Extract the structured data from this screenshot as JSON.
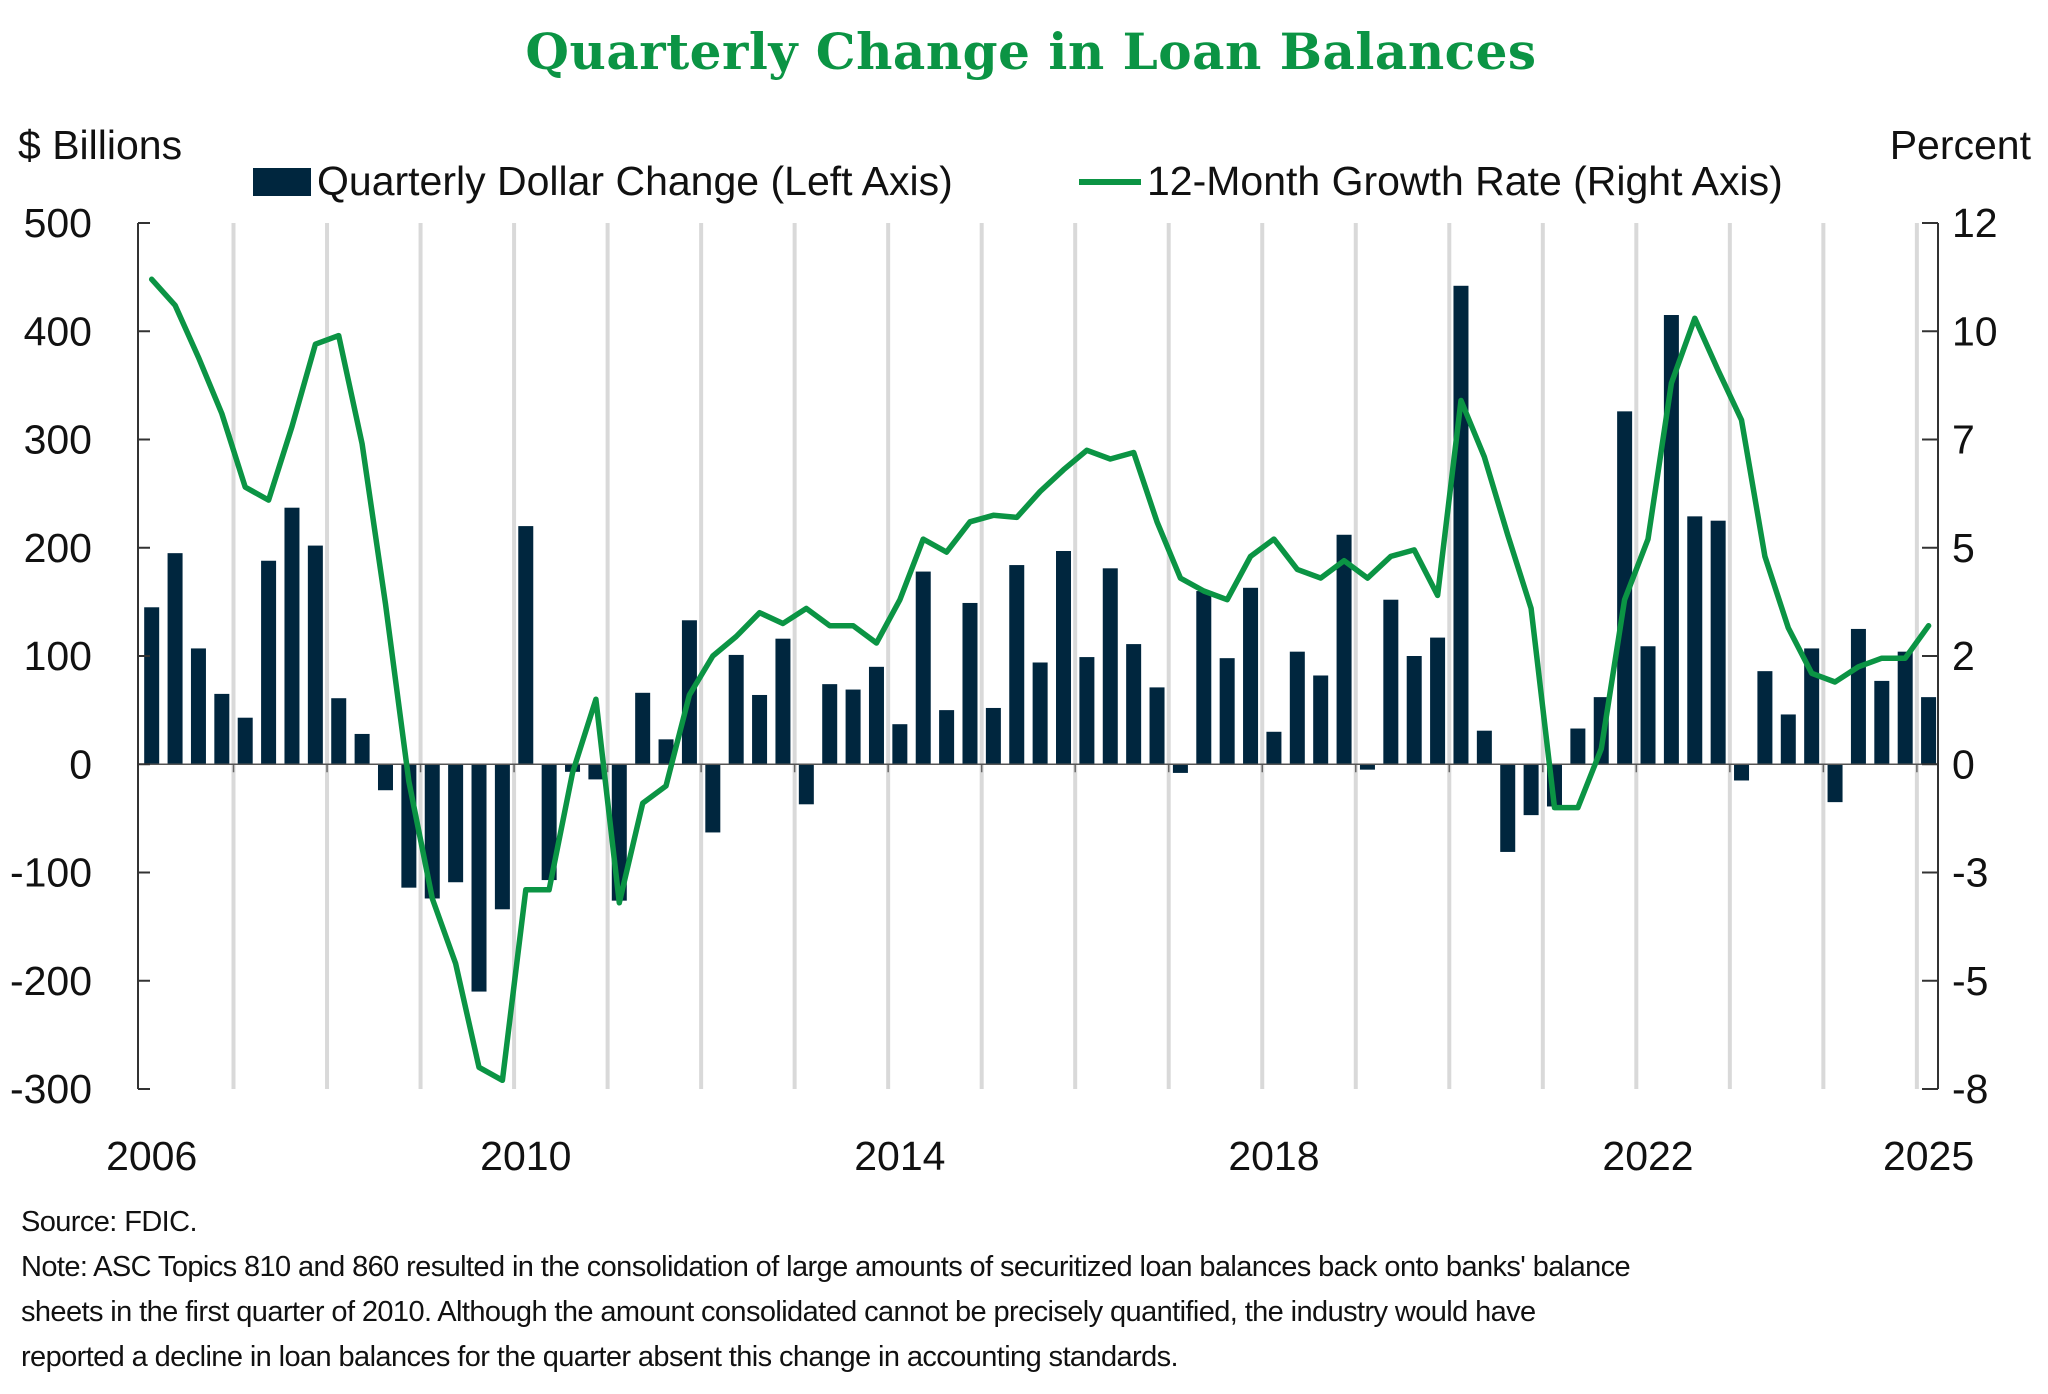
{
  "chart_data": {
    "type": "bar+line",
    "title": "Quarterly Change in Loan Balances",
    "left_axis_label": "$ Billions",
    "right_axis_label": "Percent",
    "left_ylim": [
      -300,
      500
    ],
    "right_ylim": [
      -7.5,
      12.5
    ],
    "left_ticks": [
      "500",
      "400",
      "300",
      "200",
      "100",
      "0",
      "-100",
      "-200",
      "-300"
    ],
    "right_ticks": [
      "12",
      "10",
      "7",
      "5",
      "2",
      "0",
      "-3",
      "-5",
      "-8"
    ],
    "x_ticks": [
      "2006",
      "2010",
      "2014",
      "2018",
      "2022",
      "2025"
    ],
    "x_range": [
      "2006Q1",
      "2025Q1"
    ],
    "grid": "vertical year lines",
    "legend_placement": "top",
    "colors": {
      "bars": "#00263e",
      "line": "#0b9444",
      "title": "#0b9444",
      "grid": "#d9d9d9"
    },
    "series": [
      {
        "name": "Quarterly Dollar Change (Left Axis)",
        "type": "bar",
        "axis": "left",
        "values": [
          145,
          195,
          107,
          65,
          43,
          188,
          237,
          202,
          61,
          28,
          -24,
          -114,
          -124,
          -109,
          -210,
          -134,
          220,
          -107,
          -7,
          -14,
          -126,
          66,
          23,
          133,
          -63,
          101,
          64,
          116,
          -37,
          74,
          69,
          90,
          37,
          178,
          50,
          149,
          52,
          184,
          94,
          197,
          99,
          181,
          111,
          71,
          -8,
          160,
          98,
          163,
          30,
          104,
          82,
          212,
          -5,
          152,
          100,
          117,
          442,
          31,
          -81,
          -47,
          -39,
          33,
          62,
          326,
          109,
          415,
          229,
          225,
          -15,
          86,
          46,
          107,
          -35,
          125,
          77,
          104,
          62
        ]
      },
      {
        "name": "12-Month Growth Rate (Right Axis)",
        "type": "line",
        "axis": "right",
        "values": [
          11.2,
          10.6,
          9.4,
          8.1,
          6.4,
          6.1,
          7.8,
          9.7,
          9.9,
          7.4,
          3.7,
          -0.4,
          -3.1,
          -4.6,
          -7.0,
          -7.3,
          -2.9,
          -2.9,
          -0.2,
          1.5,
          -3.2,
          -0.9,
          -0.5,
          1.6,
          2.5,
          2.95,
          3.5,
          3.25,
          3.6,
          3.2,
          3.2,
          2.8,
          3.8,
          5.2,
          4.9,
          5.6,
          5.75,
          5.7,
          6.3,
          6.8,
          7.25,
          7.05,
          7.2,
          5.6,
          4.3,
          4.0,
          3.8,
          4.8,
          5.2,
          4.5,
          4.3,
          4.7,
          4.3,
          4.8,
          4.95,
          3.9,
          8.4,
          7.1,
          5.3,
          3.6,
          -1.0,
          -1.0,
          0.36,
          3.8,
          5.2,
          8.8,
          10.3,
          9.1,
          7.95,
          4.8,
          3.15,
          2.1,
          1.9,
          2.25,
          2.45,
          2.45,
          3.2
        ]
      }
    ]
  },
  "footer": {
    "source": "Source: FDIC.",
    "note_lines": [
      "Note: ASC Topics 810 and 860 resulted in the consolidation of large amounts of securitized loan balances back onto banks' balance",
      "sheets in the first quarter of 2010. Although the amount consolidated cannot be precisely quantified, the industry would have",
      "reported a decline in loan balances for the quarter absent this change in accounting standards."
    ]
  }
}
